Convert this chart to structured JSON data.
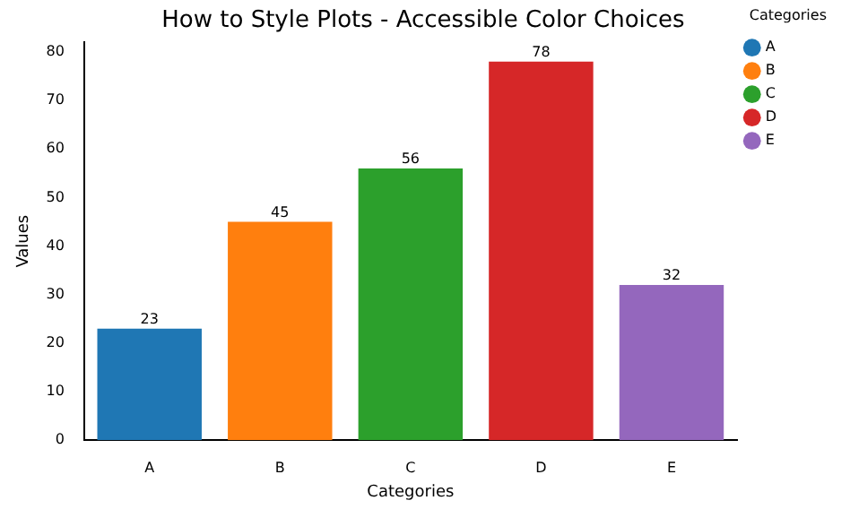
{
  "chart_data": {
    "type": "bar",
    "title": "How to Style Plots - Accessible Color Choices",
    "xlabel": "Categories",
    "ylabel": "Values",
    "legend_title": "Categories",
    "categories": [
      "A",
      "B",
      "C",
      "D",
      "E"
    ],
    "series": [
      {
        "name": "A",
        "color": "#1f77b4",
        "values": [
          23,
          null,
          null,
          null,
          null
        ]
      },
      {
        "name": "B",
        "color": "#ff7f0e",
        "values": [
          null,
          45,
          null,
          null,
          null
        ]
      },
      {
        "name": "C",
        "color": "#2ca02c",
        "values": [
          null,
          null,
          56,
          null,
          null
        ]
      },
      {
        "name": "D",
        "color": "#d62728",
        "values": [
          null,
          null,
          null,
          78,
          null
        ]
      },
      {
        "name": "E",
        "color": "#9467bd",
        "values": [
          null,
          null,
          null,
          null,
          32
        ]
      }
    ],
    "ylim": [
      0,
      82
    ],
    "yticks": [
      0,
      10,
      20,
      30,
      40,
      50,
      60,
      70,
      80
    ],
    "grid": false,
    "legend": "right",
    "marker": "circle",
    "data_labels": true
  }
}
